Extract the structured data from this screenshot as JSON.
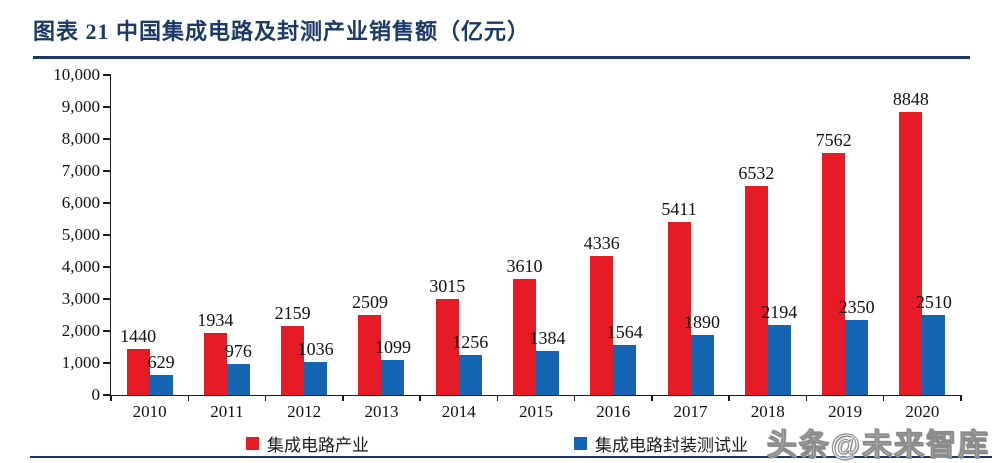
{
  "page": {
    "title": "图表 21  中国集成电路及封测产业销售额（亿元）",
    "watermark": "头条@未来智库"
  },
  "colors": {
    "title_navy": "#1b3866",
    "axis_black": "#1a1a1a",
    "series_red": "#e71b26",
    "series_blue": "#1565b4"
  },
  "chart_data": {
    "type": "bar",
    "title": "中国集成电路及封测产业销售额（亿元）",
    "categories": [
      "2010",
      "2011",
      "2012",
      "2013",
      "2014",
      "2015",
      "2016",
      "2017",
      "2018",
      "2019",
      "2020"
    ],
    "series": [
      {
        "name": "集成电路产业",
        "color": "#e71b26",
        "values": [
          1440,
          1934,
          2159,
          2509,
          3015,
          3610,
          4336,
          5411,
          6532,
          7562,
          8848
        ]
      },
      {
        "name": "集成电路封装测试业",
        "color": "#1565b4",
        "values": [
          629,
          976,
          1036,
          1099,
          1256,
          1384,
          1564,
          1890,
          2194,
          2350,
          2510
        ]
      }
    ],
    "xlabel": "",
    "ylabel": "",
    "ylim": [
      0,
      10000
    ],
    "y_ticks": [
      "0",
      "1,000",
      "2,000",
      "3,000",
      "4,000",
      "5,000",
      "6,000",
      "7,000",
      "8,000",
      "9,000",
      "10,000"
    ],
    "grid": "off",
    "legend_position": "bottom",
    "data_labels": "on"
  }
}
